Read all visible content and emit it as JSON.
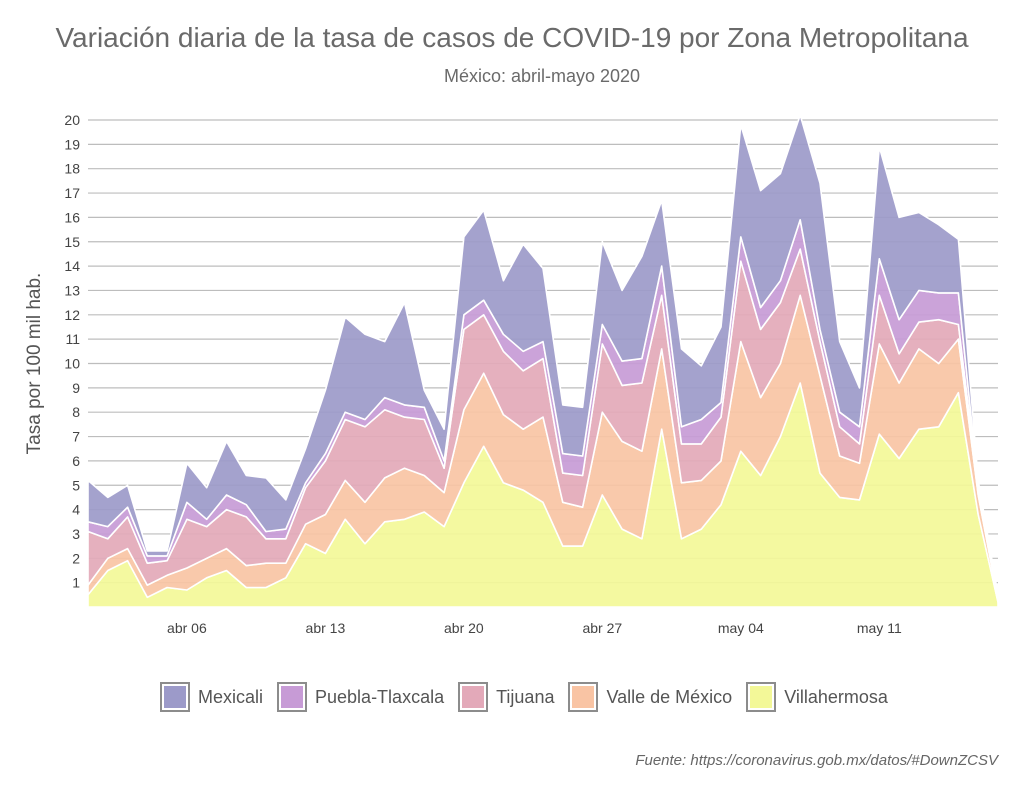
{
  "chart_data": {
    "type": "area",
    "stacked": true,
    "title": "Variación diaria de la tasa de casos de COVID-19 por Zona Metropolitana",
    "subtitle": "México: abril-mayo 2020",
    "xlabel": "",
    "ylabel": "Tasa por 100 mil hab.",
    "ylim": [
      0,
      20
    ],
    "y_ticks": [
      1,
      2,
      3,
      4,
      5,
      6,
      7,
      8,
      9,
      10,
      11,
      12,
      13,
      14,
      15,
      16,
      17,
      18,
      19,
      20
    ],
    "x_start": "2020-04-01",
    "x_range_days": [
      0,
      46
    ],
    "x_tick_days": [
      5,
      12,
      19,
      26,
      33,
      40
    ],
    "x_tick_labels": [
      "abr 06",
      "abr 13",
      "abr 20",
      "abr 27",
      "may 04",
      "may 11"
    ],
    "series": [
      {
        "name": "Villahermosa",
        "color": "#f3f898",
        "values": [
          0.5,
          1.5,
          1.9,
          0.4,
          0.8,
          0.7,
          1.2,
          1.5,
          0.8,
          0.8,
          1.2,
          2.6,
          2.2,
          3.6,
          2.6,
          3.5,
          3.6,
          3.9,
          3.3,
          5.1,
          6.6,
          5.1,
          4.8,
          4.3,
          2.5,
          2.5,
          4.6,
          3.2,
          2.8,
          7.3,
          2.8,
          3.2,
          4.2,
          6.4,
          5.4,
          7.0,
          9.2,
          5.5,
          4.5,
          4.4,
          7.1,
          6.1,
          7.3,
          7.4,
          8.8,
          3.8,
          0.2
        ]
      },
      {
        "name": "Valle de México",
        "color": "#f9c4a4",
        "values": [
          0.4,
          0.5,
          0.5,
          0.5,
          0.5,
          0.9,
          0.8,
          0.9,
          0.9,
          1.0,
          0.6,
          0.8,
          1.6,
          1.6,
          1.7,
          1.8,
          2.1,
          1.5,
          1.4,
          3.0,
          3.0,
          2.8,
          2.5,
          3.5,
          1.8,
          1.6,
          3.4,
          3.6,
          3.6,
          3.3,
          2.3,
          2.0,
          1.8,
          4.5,
          3.2,
          3.0,
          3.6,
          4.0,
          1.7,
          1.5,
          3.7,
          3.1,
          3.3,
          2.6,
          2.2,
          0.8,
          0.1
        ]
      },
      {
        "name": "Tijuana",
        "color": "#e3a9b9",
        "values": [
          2.2,
          0.8,
          1.3,
          0.9,
          0.6,
          2.0,
          1.3,
          1.6,
          2.0,
          1.0,
          1.0,
          1.5,
          2.2,
          2.5,
          3.1,
          2.8,
          2.1,
          2.3,
          1.0,
          3.3,
          2.4,
          2.6,
          2.4,
          2.4,
          1.2,
          1.3,
          2.8,
          2.3,
          2.8,
          2.2,
          1.6,
          1.5,
          1.8,
          3.3,
          2.8,
          2.5,
          1.9,
          1.4,
          1.2,
          0.8,
          2.0,
          1.2,
          1.1,
          1.8,
          0.6,
          0.3,
          0.1
        ]
      },
      {
        "name": "Puebla-Tlaxcala",
        "color": "#c79bd6",
        "values": [
          0.4,
          0.5,
          0.4,
          0.3,
          0.2,
          0.7,
          0.3,
          0.6,
          0.5,
          0.3,
          0.4,
          0.2,
          0.3,
          0.3,
          0.3,
          0.5,
          0.5,
          0.5,
          0.3,
          0.6,
          0.6,
          0.7,
          0.8,
          0.7,
          0.8,
          0.8,
          0.8,
          1.0,
          1.0,
          1.2,
          0.7,
          1.0,
          0.6,
          1.0,
          0.9,
          0.9,
          1.2,
          0.5,
          0.6,
          0.7,
          1.5,
          1.4,
          1.3,
          1.1,
          1.3,
          0.1,
          0.0
        ]
      },
      {
        "name": "Mexicali",
        "color": "#9c9ac9",
        "values": [
          1.7,
          1.2,
          0.9,
          0.2,
          0.2,
          1.6,
          1.3,
          2.2,
          1.2,
          2.2,
          1.2,
          1.4,
          2.6,
          3.9,
          3.5,
          2.3,
          4.2,
          0.7,
          1.3,
          3.2,
          3.7,
          2.2,
          4.4,
          3.0,
          2.0,
          2.0,
          3.4,
          2.9,
          4.2,
          2.7,
          3.2,
          2.2,
          3.1,
          4.6,
          4.8,
          4.4,
          4.3,
          6.0,
          2.9,
          1.6,
          4.6,
          4.2,
          3.2,
          2.8,
          2.2,
          0.2,
          0.1
        ]
      }
    ]
  },
  "legend": {
    "items": [
      {
        "label": "Mexicali",
        "color": "#9c9ac9"
      },
      {
        "label": "Puebla-Tlaxcala",
        "color": "#c79bd6"
      },
      {
        "label": "Tijuana",
        "color": "#e3a9b9"
      },
      {
        "label": "Valle de México",
        "color": "#f9c4a4"
      },
      {
        "label": "Villahermosa",
        "color": "#f3f898"
      }
    ]
  },
  "source": "Fuente: https://coronavirus.gob.mx/datos/#DownZCSV"
}
